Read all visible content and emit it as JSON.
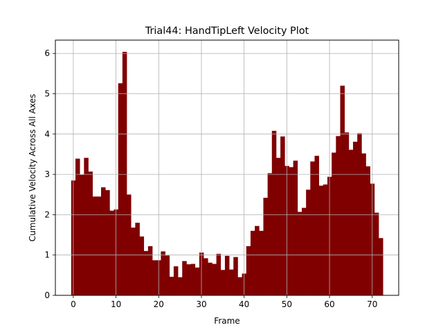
{
  "chart_data": {
    "type": "bar",
    "title": "Trial44: HandTipLeft Velocity Plot",
    "xlabel": "Frame",
    "ylabel": "Cumulative Velocity Across All Axes",
    "xlim": [
      -4.2,
      76.2
    ],
    "ylim": [
      0,
      6.33
    ],
    "x_ticks": [
      0,
      10,
      20,
      30,
      40,
      50,
      60,
      70
    ],
    "y_ticks": [
      0,
      1,
      2,
      3,
      4,
      5,
      6
    ],
    "grid": true,
    "bar_color": "#800000",
    "bar_width": 1,
    "x": [
      0,
      1,
      2,
      3,
      4,
      5,
      6,
      7,
      8,
      9,
      10,
      11,
      12,
      13,
      14,
      15,
      16,
      17,
      18,
      19,
      20,
      21,
      22,
      23,
      24,
      25,
      26,
      27,
      28,
      29,
      30,
      31,
      32,
      33,
      34,
      35,
      36,
      37,
      38,
      39,
      40,
      41,
      42,
      43,
      44,
      45,
      46,
      47,
      48,
      49,
      50,
      51,
      52,
      53,
      54,
      55,
      56,
      57,
      58,
      59,
      60,
      61,
      62,
      63,
      64,
      65,
      66,
      67,
      68,
      69,
      70,
      71,
      72
    ],
    "values": [
      2.85,
      3.39,
      2.99,
      3.41,
      3.07,
      2.45,
      2.45,
      2.68,
      2.61,
      2.1,
      2.13,
      5.26,
      6.04,
      2.5,
      1.68,
      1.8,
      1.46,
      1.1,
      1.22,
      0.87,
      0.87,
      1.09,
      0.99,
      0.46,
      0.72,
      0.45,
      0.85,
      0.77,
      0.78,
      0.69,
      1.06,
      0.92,
      0.81,
      0.78,
      1.03,
      0.63,
      0.98,
      0.64,
      0.95,
      0.45,
      0.54,
      1.22,
      1.6,
      1.72,
      1.6,
      2.42,
      3.03,
      4.08,
      3.41,
      3.94,
      3.21,
      3.18,
      3.34,
      2.07,
      2.17,
      2.62,
      3.32,
      3.46,
      2.72,
      2.75,
      2.94,
      3.54,
      3.95,
      5.2,
      4.04,
      3.61,
      3.81,
      4.02,
      3.52,
      3.2,
      2.77,
      2.05,
      1.42
    ]
  }
}
